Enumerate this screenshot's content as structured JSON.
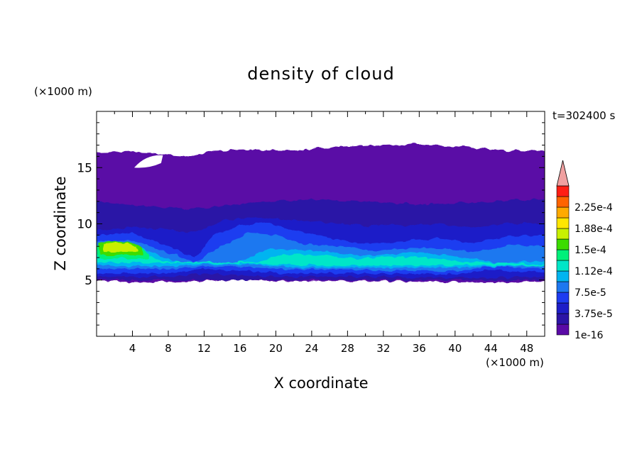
{
  "chart_data": {
    "type": "heatmap",
    "title": "density of cloud",
    "xlabel": "X coordinate",
    "ylabel": "Z coordinate",
    "x_unit": "(×1000 m)",
    "y_unit": "(×1000 m)",
    "time_label": "t=302400 s",
    "xlim": [
      0,
      50
    ],
    "ylim": [
      0,
      20
    ],
    "x_ticks": [
      "4",
      "8",
      "12",
      "16",
      "20",
      "24",
      "28",
      "32",
      "36",
      "40",
      "44",
      "48"
    ],
    "y_ticks": [
      "5",
      "10",
      "15"
    ],
    "grid": false,
    "colorbar": {
      "position": "right",
      "labels": [
        "1e-16",
        "3.75e-5",
        "7.5e-5",
        "1.12e-4",
        "1.5e-4",
        "1.88e-4",
        "2.25e-4"
      ],
      "levels": [
        1e-16,
        1.875e-05,
        3.75e-05,
        5.625e-05,
        7.5e-05,
        9.375e-05,
        0.0001125,
        0.00013125,
        0.00015,
        0.00016875,
        0.0001875,
        0.00020625,
        0.000225,
        0.00024375
      ],
      "colors": [
        "#5a0aa6",
        "#2c14a6",
        "#1e1ec8",
        "#1e3cf0",
        "#1e78f0",
        "#00b4f0",
        "#00e6c8",
        "#00f07a",
        "#3cdc00",
        "#c8f000",
        "#ffe600",
        "#ffaa00",
        "#ff6400",
        "#ff1e14"
      ],
      "extend_max_color": "#f0a0a0"
    },
    "regions": [
      {
        "level": 1,
        "desc": "cloud envelope",
        "x": [
          0,
          50
        ],
        "z": [
          4.9,
          16.5
        ]
      },
      {
        "level": 3,
        "desc": "lower dense band",
        "x": [
          0,
          50
        ],
        "z": [
          5.2,
          10.0
        ]
      },
      {
        "level": 6,
        "desc": "cyan core",
        "x": [
          0,
          50
        ],
        "z": [
          5.8,
          8.0
        ]
      },
      {
        "level": 9,
        "desc": "yellow-green maximum",
        "x": [
          0.3,
          5.5
        ],
        "z": [
          6.9,
          8.6
        ]
      }
    ]
  }
}
